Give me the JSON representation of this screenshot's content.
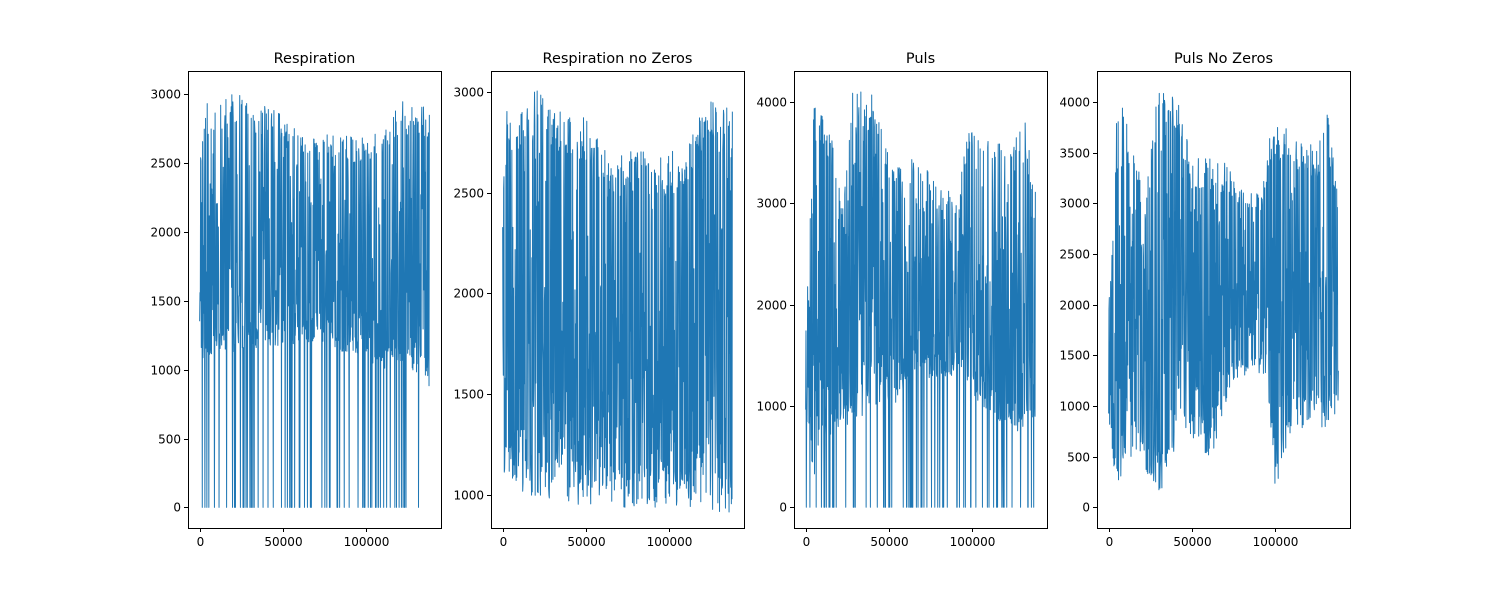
{
  "figure": {
    "series_color": "#1f77b4"
  },
  "chart_data": [
    {
      "type": "line",
      "title": "Respiration",
      "xlabel": "",
      "ylabel": "",
      "xlim": [
        -7000,
        145000
      ],
      "ylim": [
        -150,
        3170
      ],
      "xticks": [
        0,
        50000,
        100000
      ],
      "xtick_labels": [
        "0",
        "50000",
        "100000"
      ],
      "yticks": [
        0,
        500,
        1000,
        1500,
        2000,
        2500,
        3000
      ],
      "ytick_labels": [
        "0",
        "500",
        "1000",
        "1500",
        "2000",
        "2500",
        "3000"
      ],
      "grid": false,
      "legend": "none",
      "series": [
        {
          "x_range": [
            0,
            138000
          ],
          "n_points": 700,
          "upper_envelope": [
            [
              0,
              2470
            ],
            [
              3000,
              2980
            ],
            [
              8000,
              2860
            ],
            [
              20000,
              3020
            ],
            [
              35000,
              2920
            ],
            [
              50000,
              2890
            ],
            [
              65000,
              2660
            ],
            [
              80000,
              2730
            ],
            [
              95000,
              2680
            ],
            [
              110000,
              2740
            ],
            [
              122000,
              2960
            ],
            [
              130000,
              2940
            ],
            [
              138000,
              2930
            ]
          ],
          "lower_envelope": [
            [
              0,
              1060
            ],
            [
              10000,
              1120
            ],
            [
              30000,
              1140
            ],
            [
              50000,
              1180
            ],
            [
              70000,
              1200
            ],
            [
              90000,
              1100
            ],
            [
              110000,
              1000
            ],
            [
              125000,
              1030
            ],
            [
              138000,
              880
            ]
          ],
          "value_min": 0,
          "value_max": 3020,
          "zero_dropouts": true
        }
      ]
    },
    {
      "type": "line",
      "title": "Respiration no Zeros",
      "xlabel": "",
      "ylabel": "",
      "xlim": [
        -7000,
        145000
      ],
      "ylim": [
        835,
        3105
      ],
      "xticks": [
        0,
        50000,
        100000
      ],
      "xtick_labels": [
        "0",
        "50000",
        "100000"
      ],
      "yticks": [
        1000,
        1500,
        2000,
        2500,
        3000
      ],
      "ytick_labels": [
        "1000",
        "1500",
        "2000",
        "2500",
        "3000"
      ],
      "grid": false,
      "legend": "none",
      "series": [
        {
          "x_range": [
            0,
            138000
          ],
          "n_points": 700,
          "upper_envelope": [
            [
              0,
              2470
            ],
            [
              3000,
              2980
            ],
            [
              8000,
              2860
            ],
            [
              20000,
              3020
            ],
            [
              35000,
              2920
            ],
            [
              50000,
              2890
            ],
            [
              65000,
              2660
            ],
            [
              80000,
              2730
            ],
            [
              95000,
              2680
            ],
            [
              110000,
              2740
            ],
            [
              122000,
              2960
            ],
            [
              130000,
              2940
            ],
            [
              138000,
              2930
            ]
          ],
          "lower_envelope": [
            [
              0,
              1050
            ],
            [
              10000,
              1000
            ],
            [
              30000,
              980
            ],
            [
              55000,
              930
            ],
            [
              75000,
              920
            ],
            [
              100000,
              940
            ],
            [
              120000,
              930
            ],
            [
              138000,
              870
            ]
          ],
          "value_min": 870,
          "value_max": 3020,
          "zero_dropouts": false
        }
      ]
    },
    {
      "type": "line",
      "title": "Puls",
      "xlabel": "",
      "ylabel": "",
      "xlim": [
        -7000,
        145000
      ],
      "ylim": [
        -205,
        4305
      ],
      "xticks": [
        0,
        50000,
        100000
      ],
      "xtick_labels": [
        "0",
        "50000",
        "100000"
      ],
      "yticks": [
        0,
        1000,
        2000,
        3000,
        4000
      ],
      "ytick_labels": [
        "0",
        "1000",
        "2000",
        "3000",
        "4000"
      ],
      "grid": false,
      "legend": "none",
      "series": [
        {
          "x_range": [
            0,
            138000
          ],
          "n_points": 700,
          "upper_envelope": [
            [
              0,
              2100
            ],
            [
              3000,
              2950
            ],
            [
              5000,
              4100
            ],
            [
              15000,
              3700
            ],
            [
              22000,
              3000
            ],
            [
              28000,
              4100
            ],
            [
              40000,
              4100
            ],
            [
              50000,
              3450
            ],
            [
              60000,
              3450
            ],
            [
              70000,
              3400
            ],
            [
              80000,
              3150
            ],
            [
              92000,
              3100
            ],
            [
              98000,
              3800
            ],
            [
              112000,
              3700
            ],
            [
              125000,
              3550
            ],
            [
              131000,
              3950
            ],
            [
              138000,
              3150
            ]
          ],
          "lower_envelope": [
            [
              0,
              900
            ],
            [
              5000,
              200
            ],
            [
              10000,
              600
            ],
            [
              20000,
              800
            ],
            [
              30000,
              800
            ],
            [
              45000,
              1000
            ],
            [
              55000,
              1000
            ],
            [
              65000,
              1300
            ],
            [
              75000,
              1250
            ],
            [
              85000,
              1300
            ],
            [
              95000,
              1300
            ],
            [
              105000,
              1000
            ],
            [
              115000,
              850
            ],
            [
              125000,
              700
            ],
            [
              138000,
              900
            ]
          ],
          "value_min": 0,
          "value_max": 4100,
          "zero_dropouts": true
        }
      ]
    },
    {
      "type": "line",
      "title": "Puls No Zeros",
      "xlabel": "",
      "ylabel": "",
      "xlim": [
        -7000,
        145000
      ],
      "ylim": [
        -205,
        4305
      ],
      "xticks": [
        0,
        50000,
        100000
      ],
      "xtick_labels": [
        "0",
        "50000",
        "100000"
      ],
      "yticks": [
        0,
        500,
        1000,
        1500,
        2000,
        2500,
        3000,
        3500,
        4000
      ],
      "ytick_labels": [
        "0",
        "500",
        "1000",
        "1500",
        "2000",
        "2500",
        "3000",
        "3500",
        "4000"
      ],
      "grid": false,
      "legend": "none",
      "series": [
        {
          "x_range": [
            0,
            138000
          ],
          "n_points": 700,
          "upper_envelope": [
            [
              0,
              2100
            ],
            [
              3000,
              2950
            ],
            [
              5000,
              4100
            ],
            [
              15000,
              3700
            ],
            [
              22000,
              3000
            ],
            [
              28000,
              4100
            ],
            [
              40000,
              4100
            ],
            [
              50000,
              3450
            ],
            [
              60000,
              3450
            ],
            [
              70000,
              3400
            ],
            [
              80000,
              3150
            ],
            [
              92000,
              3100
            ],
            [
              98000,
              3800
            ],
            [
              112000,
              3700
            ],
            [
              125000,
              3550
            ],
            [
              131000,
              3950
            ],
            [
              138000,
              3150
            ]
          ],
          "lower_envelope": [
            [
              0,
              850
            ],
            [
              5000,
              120
            ],
            [
              10000,
              500
            ],
            [
              20000,
              450
            ],
            [
              30000,
              100
            ],
            [
              45000,
              700
            ],
            [
              55000,
              650
            ],
            [
              60000,
              380
            ],
            [
              75000,
              1250
            ],
            [
              85000,
              1300
            ],
            [
              95000,
              1300
            ],
            [
              100000,
              150
            ],
            [
              110000,
              800
            ],
            [
              125000,
              700
            ],
            [
              138000,
              900
            ]
          ],
          "value_min": 100,
          "value_max": 4100,
          "zero_dropouts": false
        }
      ]
    }
  ]
}
